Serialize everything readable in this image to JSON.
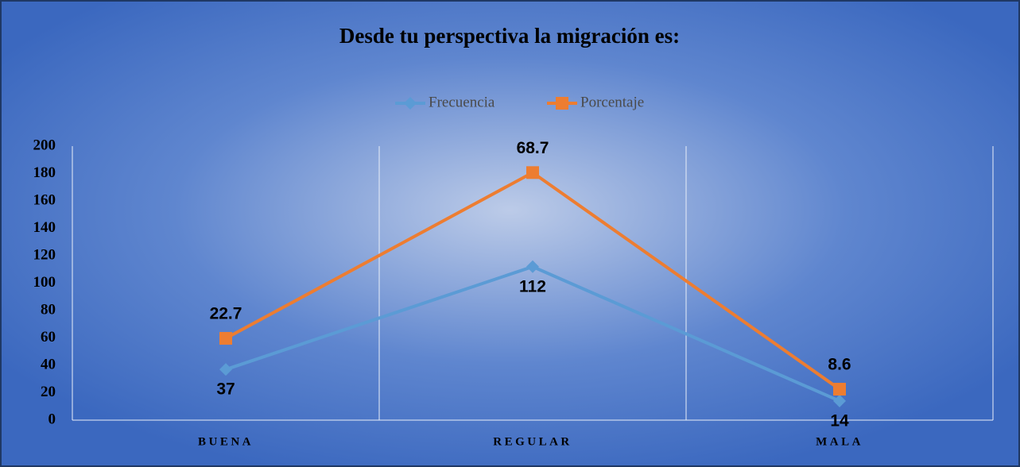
{
  "chart_data": {
    "type": "line",
    "stacked": true,
    "title": "Desde tu perspectiva la migración es:",
    "categories": [
      "BUENA",
      "REGULAR",
      "MALA"
    ],
    "series": [
      {
        "name": "Frecuencia",
        "color": "#5b9bd5",
        "marker": "diamond",
        "values": [
          37,
          112,
          14
        ]
      },
      {
        "name": "Porcentaje",
        "color": "#ed7d31",
        "marker": "square",
        "values": [
          22.7,
          68.7,
          8.6
        ]
      }
    ],
    "ylim": [
      0,
      200
    ],
    "yticks": [
      0,
      20,
      40,
      60,
      80,
      100,
      120,
      140,
      160,
      180,
      200
    ],
    "legend": "top"
  }
}
